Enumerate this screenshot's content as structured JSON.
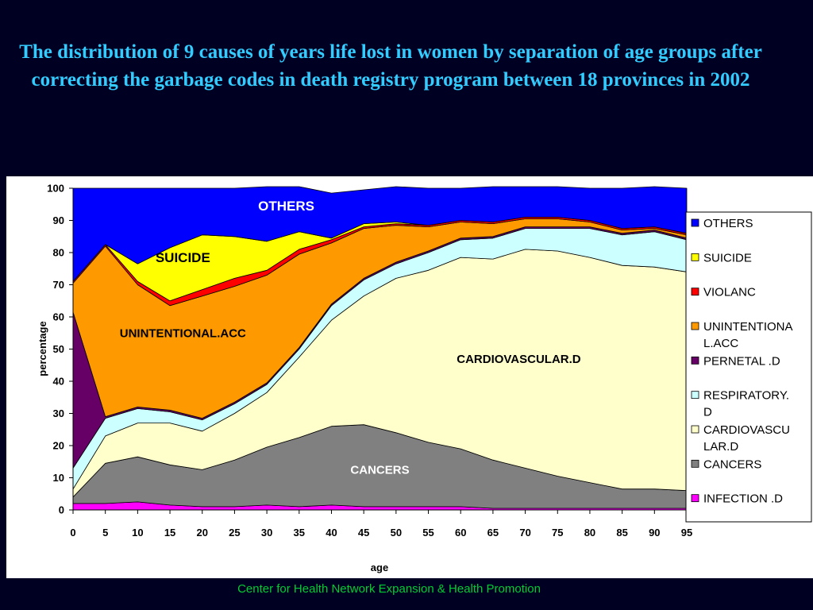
{
  "title": "The distribution of 9 causes of years life lost in women by separation of age groups after correcting the garbage codes in death registry program between 18 provinces in 2002",
  "footer": "Center for Health Network Expansion & Health Promotion",
  "chart_data": {
    "type": "area",
    "stacked": true,
    "xlabel": "age",
    "ylabel": "percentage",
    "x": [
      0,
      5,
      10,
      15,
      20,
      25,
      30,
      35,
      40,
      45,
      50,
      55,
      60,
      65,
      70,
      75,
      80,
      85,
      90,
      95
    ],
    "xlim": [
      0,
      95
    ],
    "ylim": [
      0,
      100
    ],
    "yticks": [
      0,
      10,
      20,
      30,
      40,
      50,
      60,
      70,
      80,
      90,
      100
    ],
    "legend_position": "right",
    "series": [
      {
        "name": "INFECTION .D",
        "color": "#ff00ff",
        "values": [
          2,
          2,
          2.5,
          1.5,
          1,
          1,
          1.5,
          1,
          1.5,
          1,
          1,
          1,
          1,
          0.5,
          0.5,
          0.5,
          0.5,
          0.5,
          0.5,
          0.5
        ]
      },
      {
        "name": "CANCERS",
        "color": "#808080",
        "values": [
          2,
          12.5,
          14,
          12.5,
          11.5,
          14.5,
          18,
          21.5,
          24.5,
          25.5,
          23,
          20,
          18,
          15,
          12.5,
          10,
          8,
          6,
          6,
          5.5
        ]
      },
      {
        "name": "CARDIOVASCULAR.D",
        "color": "#ffffcc",
        "values": [
          2.5,
          8.5,
          10.5,
          13,
          12,
          14.5,
          17,
          25,
          33,
          40,
          48,
          53.5,
          59.5,
          62.5,
          68,
          70,
          70,
          69.5,
          69,
          68
        ]
      },
      {
        "name": "RESPIRATORY.D",
        "color": "#ccffff",
        "values": [
          6.5,
          5.5,
          4.5,
          3.5,
          3.5,
          3,
          2.5,
          2.5,
          4.5,
          5,
          4.5,
          5.5,
          5.5,
          6.5,
          6.5,
          7,
          9,
          9.5,
          11,
          10
        ]
      },
      {
        "name": "PERNETAL .D",
        "color": "#660066",
        "values": [
          48.5,
          0.5,
          0.5,
          0.5,
          0.5,
          0.5,
          0.5,
          0.5,
          0.5,
          0.5,
          0.5,
          0.5,
          0.5,
          0.5,
          0.5,
          0.5,
          0.5,
          0.5,
          0.5,
          0.5
        ]
      },
      {
        "name": "UNINTENTIONAL.ACC",
        "color": "#ff9900",
        "values": [
          9,
          53,
          38,
          32.5,
          38,
          36,
          33.5,
          29,
          19,
          15.5,
          11.5,
          7.5,
          5,
          4,
          2.5,
          2.5,
          1.5,
          1,
          0.5,
          1
        ]
      },
      {
        "name": "VIOLANC",
        "color": "#ff0000",
        "values": [
          0.5,
          0.5,
          1,
          1.5,
          2,
          2.5,
          1.5,
          1.5,
          1,
          0.5,
          0.5,
          0.5,
          0.5,
          0.5,
          0.5,
          0.5,
          0.5,
          0.5,
          0.5,
          0.5
        ]
      },
      {
        "name": "SUICIDE",
        "color": "#ffff00",
        "values": [
          0,
          0,
          5.5,
          16.5,
          17,
          13,
          9,
          5.5,
          0.5,
          1,
          0.5,
          0,
          0,
          0,
          0,
          0,
          0,
          0,
          0,
          0
        ]
      },
      {
        "name": "OTHERS",
        "color": "#0000ff",
        "values": [
          29,
          17.5,
          23.5,
          18.5,
          14.5,
          15,
          17,
          14,
          14,
          10.5,
          11,
          11.5,
          10,
          11,
          9.5,
          9.5,
          10,
          12.5,
          12.5,
          14
        ]
      }
    ],
    "annotations": [
      {
        "text": "OTHERS",
        "x": 33,
        "y": 94.5,
        "color": "#ffffff",
        "size": 17
      },
      {
        "text": "SUICIDE",
        "x": 17,
        "y": 78.5,
        "color": "#000000",
        "size": 17
      },
      {
        "text": "UNINTENTIONAL.ACC",
        "x": 17,
        "y": 55,
        "color": "#000000",
        "size": 15
      },
      {
        "text": "CARDIOVASCULAR.D",
        "x": 69,
        "y": 47,
        "color": "#000000",
        "size": 15
      },
      {
        "text": "CANCERS",
        "x": 47.5,
        "y": 12.5,
        "color": "#ffffff",
        "size": 15
      }
    ],
    "legend_order": [
      "OTHERS",
      "SUICIDE",
      "VIOLANC",
      "UNINTENTIONAL.ACC",
      "PERNETAL .D",
      "RESPIRATORY.D",
      "CARDIOVASCULAR.D",
      "CANCERS",
      "INFECTION .D"
    ],
    "legend_lines": {
      "OTHERS": [
        "OTHERS"
      ],
      "SUICIDE": [
        "SUICIDE"
      ],
      "VIOLANC": [
        "VIOLANC"
      ],
      "UNINTENTIONAL.ACC": [
        "UNINTENTIONA",
        "L.ACC"
      ],
      "PERNETAL .D": [
        "PERNETAL .D"
      ],
      "RESPIRATORY.D": [
        "RESPIRATORY.",
        "D"
      ],
      "CARDIOVASCULAR.D": [
        "CARDIOVASCU",
        "LAR.D"
      ],
      "CANCERS": [
        "CANCERS"
      ],
      "INFECTION .D": [
        "INFECTION .D"
      ]
    }
  }
}
